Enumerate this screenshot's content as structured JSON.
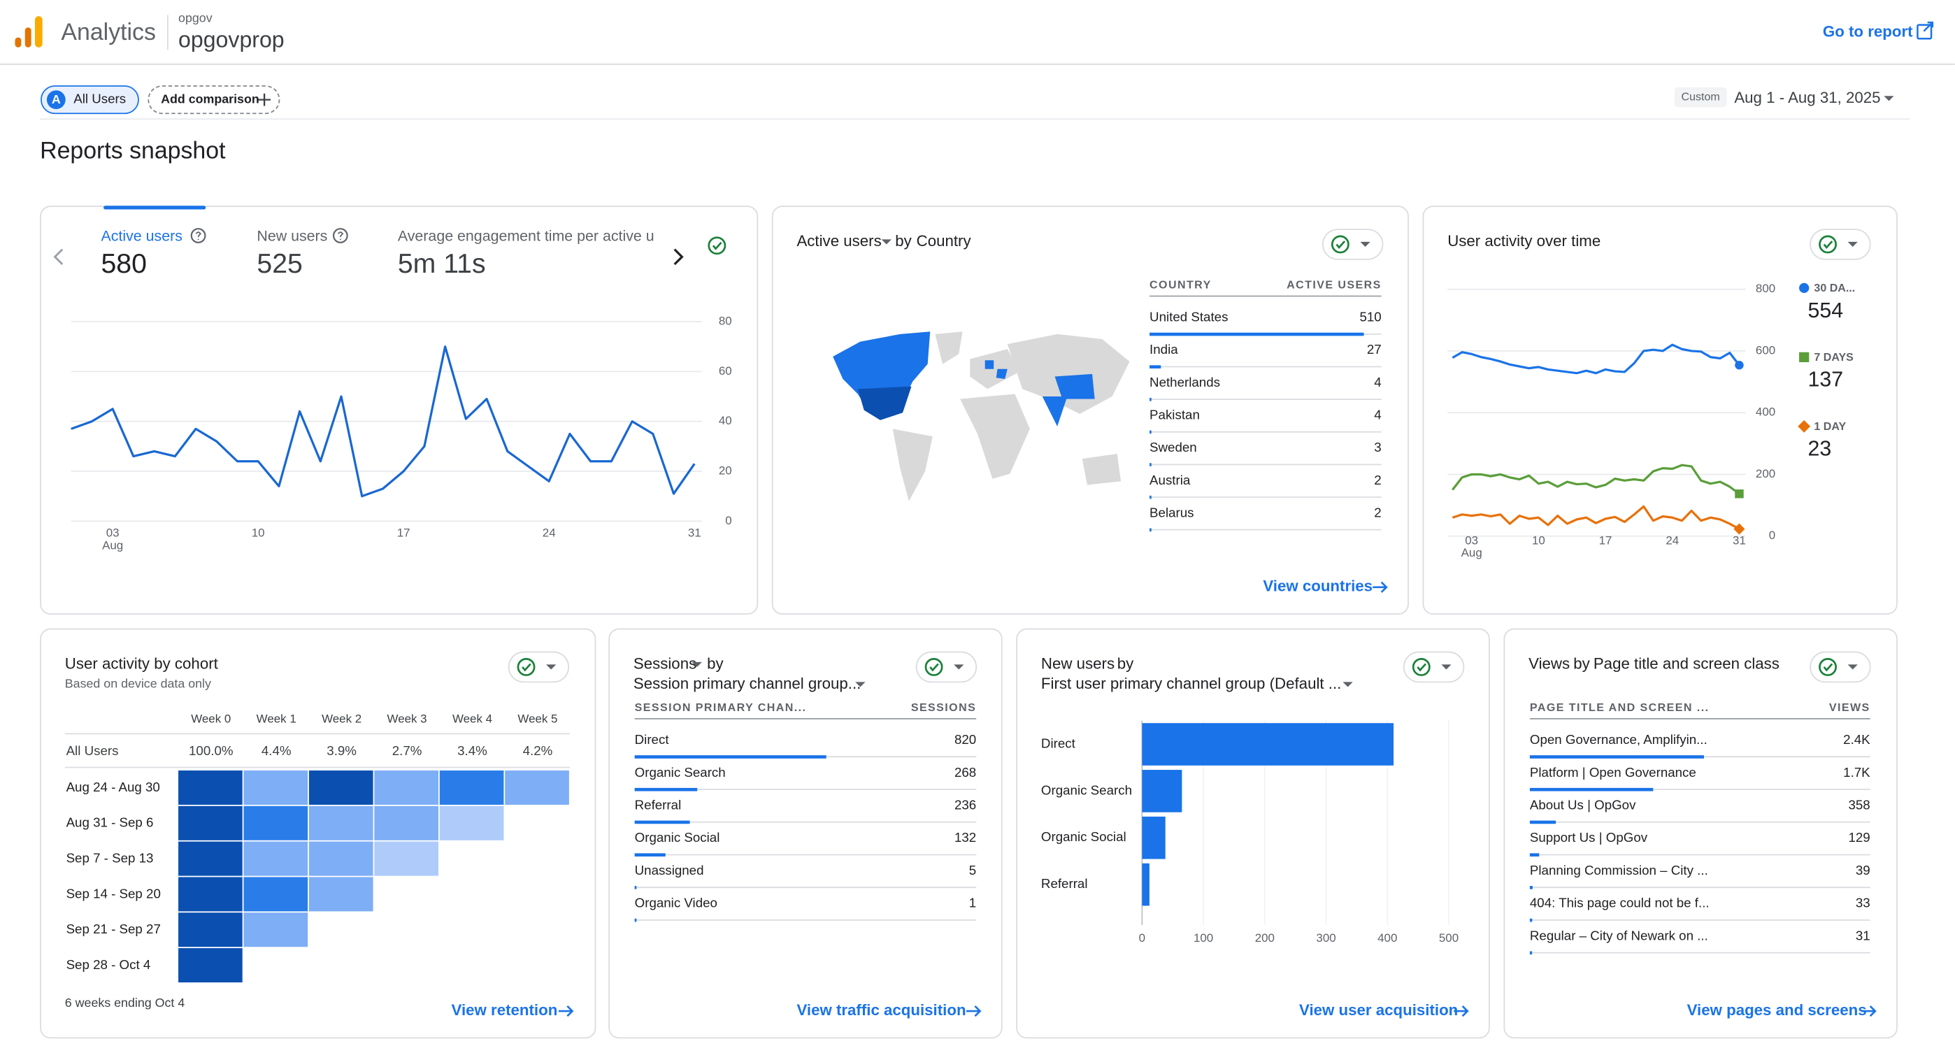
{
  "header": {
    "product": "Analytics",
    "account": "opgov",
    "property": "opgovprop",
    "action": "Go to report"
  },
  "toolbar": {
    "segment_badge": "A",
    "segment": "All Users",
    "add_comparison": "Add comparison",
    "date_label": "Custom",
    "date_range": "Aug 1 - Aug 31, 2025"
  },
  "page_title": "Reports snapshot",
  "overview": {
    "metrics": [
      {
        "label": "Active users",
        "value": "580"
      },
      {
        "label": "New users",
        "value": "525"
      },
      {
        "label": "Average engagement time per active u",
        "value": "5m 11s"
      }
    ],
    "chart": {
      "type": "line",
      "color": "#1967d2",
      "x": [
        1,
        2,
        3,
        4,
        5,
        6,
        7,
        8,
        9,
        10,
        11,
        12,
        13,
        14,
        15,
        16,
        17,
        18,
        19,
        20,
        21,
        22,
        23,
        24,
        25,
        26,
        27,
        28,
        29,
        30,
        31
      ],
      "values": [
        37,
        40,
        45,
        26,
        28,
        26,
        37,
        32,
        24,
        24,
        14,
        44,
        24,
        50,
        10,
        13,
        20,
        30,
        70,
        41,
        49,
        28,
        22,
        16,
        35,
        24,
        24,
        40,
        35,
        11,
        23
      ],
      "xlim": [
        1,
        31
      ],
      "xticks": [
        {
          "value": 3,
          "label": "03"
        },
        10,
        17,
        24,
        31
      ],
      "xtick_sublabel": "Aug",
      "ylim": [
        0,
        80
      ],
      "yticks": [
        0,
        20,
        40,
        60,
        80
      ],
      "grid": true
    }
  },
  "countries": {
    "title_metric": "Active users",
    "by": "by",
    "title_dimension": "Country",
    "columns": [
      "COUNTRY",
      "ACTIVE USERS"
    ],
    "rows": [
      {
        "label": "United States",
        "value": 510
      },
      {
        "label": "India",
        "value": 27
      },
      {
        "label": "Netherlands",
        "value": 4
      },
      {
        "label": "Pakistan",
        "value": 4
      },
      {
        "label": "Sweden",
        "value": 3
      },
      {
        "label": "Austria",
        "value": 2
      },
      {
        "label": "Belarus",
        "value": 2
      }
    ],
    "link": "View countries"
  },
  "activity": {
    "title": "User activity over time",
    "chart": {
      "type": "line",
      "x": [
        1,
        2,
        3,
        4,
        5,
        6,
        7,
        8,
        9,
        10,
        11,
        12,
        13,
        14,
        15,
        16,
        17,
        18,
        19,
        20,
        21,
        22,
        23,
        24,
        25,
        26,
        27,
        28,
        29,
        30,
        31
      ],
      "series": [
        {
          "name": "30 DA...",
          "color": "#1a73e8",
          "marker": "circle",
          "values": [
            578,
            596,
            590,
            580,
            574,
            566,
            556,
            550,
            544,
            548,
            540,
            536,
            532,
            528,
            536,
            528,
            540,
            534,
            532,
            560,
            600,
            604,
            600,
            620,
            606,
            600,
            598,
            580,
            576,
            594,
            554
          ]
        },
        {
          "name": "7 DAYS",
          "color": "#5a9e3a",
          "marker": "square",
          "values": [
            150,
            190,
            200,
            200,
            194,
            200,
            190,
            184,
            196,
            170,
            176,
            160,
            176,
            168,
            170,
            158,
            166,
            186,
            180,
            184,
            180,
            210,
            220,
            218,
            230,
            226,
            180,
            170,
            176,
            160,
            137
          ]
        },
        {
          "name": "1 DAY",
          "color": "#e8710a",
          "marker": "diamond",
          "values": [
            60,
            70,
            66,
            70,
            64,
            70,
            40,
            66,
            56,
            60,
            36,
            66,
            40,
            54,
            60,
            42,
            56,
            62,
            46,
            70,
            96,
            50,
            64,
            60,
            50,
            82,
            50,
            60,
            54,
            40,
            23
          ]
        }
      ],
      "xlim": [
        1,
        31
      ],
      "xticks": [
        {
          "value": 3,
          "label": "03"
        },
        10,
        17,
        24,
        31
      ],
      "xtick_sublabel": "Aug",
      "ylim": [
        0,
        800
      ],
      "yticks": [
        0,
        200,
        400,
        600,
        800
      ],
      "grid": true
    }
  },
  "cohort": {
    "title": "User activity by cohort",
    "subtitle": "Based on device data only",
    "columns": [
      "Week 0",
      "Week 1",
      "Week 2",
      "Week 3",
      "Week 4",
      "Week 5"
    ],
    "summary": {
      "label": "All Users",
      "values": [
        "100.0%",
        "4.4%",
        "3.9%",
        "2.7%",
        "3.4%",
        "4.2%"
      ]
    },
    "rows": [
      {
        "label": "Aug 24 - Aug 30",
        "values": [
          100,
          3.0,
          7.0,
          3.8,
          5.0,
          2.6
        ]
      },
      {
        "label": "Aug 31 - Sep 6",
        "values": [
          100,
          6.0,
          3.5,
          3.0,
          1.6
        ]
      },
      {
        "label": "Sep 7 - Sep 13",
        "values": [
          100,
          3.2,
          3.6,
          1.8
        ]
      },
      {
        "label": "Sep 14 - Sep 20",
        "values": [
          100,
          5.5,
          3.5
        ]
      },
      {
        "label": "Sep 21 - Sep 27",
        "values": [
          100,
          2.8
        ]
      },
      {
        "label": "Sep 28 - Oct 4",
        "values": [
          100
        ]
      }
    ],
    "footnote": "6 weeks ending Oct 4",
    "link": "View retention"
  },
  "sessions": {
    "title_metric": "Sessions",
    "by": "by",
    "title_dimension": "Session primary channel group...",
    "columns": [
      "SESSION PRIMARY CHAN...",
      "SESSIONS"
    ],
    "rows": [
      {
        "label": "Direct",
        "value": 820
      },
      {
        "label": "Organic Search",
        "value": 268
      },
      {
        "label": "Referral",
        "value": 236
      },
      {
        "label": "Organic Social",
        "value": 132
      },
      {
        "label": "Unassigned",
        "value": 5
      },
      {
        "label": "Organic Video",
        "value": 1
      }
    ],
    "link": "View traffic acquisition"
  },
  "new_users": {
    "title_metric": "New users",
    "by": "by",
    "title_dimension": "First user primary channel group (Default ...",
    "chart": {
      "type": "bar",
      "orientation": "horizontal",
      "color": "#1a73e8",
      "categories": [
        "Direct",
        "Organic Search",
        "Organic Social",
        "Referral"
      ],
      "values": [
        410,
        65,
        38,
        12
      ],
      "xlim": [
        0,
        500
      ],
      "xticks": [
        0,
        100,
        200,
        300,
        400,
        500
      ]
    },
    "link": "View user acquisition"
  },
  "views": {
    "title_metric": "Views",
    "by": "by",
    "title_dimension": "Page title and screen class",
    "columns": [
      "PAGE TITLE AND SCREEN ...",
      "VIEWS"
    ],
    "rows": [
      {
        "label": "Open Governance, Amplifyin...",
        "value": 2400,
        "value_label": "2.4K"
      },
      {
        "label": "Platform | Open Governance",
        "value": 1700,
        "value_label": "1.7K"
      },
      {
        "label": "About Us | OpGov",
        "value": 358
      },
      {
        "label": "Support Us | OpGov",
        "value": 129
      },
      {
        "label": "Planning Commission – City ...",
        "value": 39
      },
      {
        "label": "404: This page could not be f...",
        "value": 33
      },
      {
        "label": "Regular – City of Newark on ...",
        "value": 31
      }
    ],
    "link": "View pages and screens"
  }
}
